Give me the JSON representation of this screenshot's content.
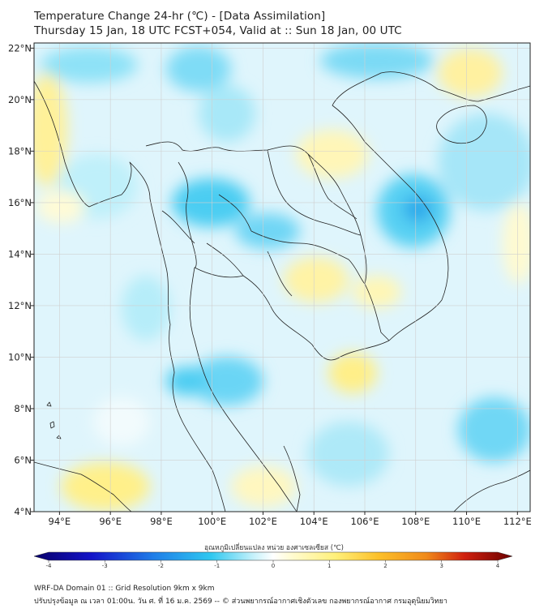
{
  "header": {
    "title_line1": "Temperature Change 24-hr (℃) - [Data Assimilation]",
    "title_line2": "Thursday 15 Jan, 18 UTC FCST+054, Valid at :: Sun 18 Jan, 00 UTC"
  },
  "map": {
    "lon_min": 93,
    "lon_max": 112.5,
    "lat_min": 4,
    "lat_max": 22.2,
    "lon_ticks": [
      "94°E",
      "96°E",
      "98°E",
      "100°E",
      "102°E",
      "104°E",
      "106°E",
      "108°E",
      "110°E",
      "112°E"
    ],
    "lat_ticks": [
      "4°N",
      "6°N",
      "8°N",
      "10°N",
      "12°N",
      "14°N",
      "16°N",
      "18°N",
      "20°N",
      "22°N"
    ]
  },
  "colorbar": {
    "title": "อุณหภูมิเปลี่ยนแปลง หน่วย องศาเซลเซียส (℃)",
    "tick_labels": [
      "-4",
      "-3",
      "-2",
      "-1",
      "0",
      "1",
      "2",
      "3",
      "4"
    ],
    "colors": {
      "cold_extreme": "#08006a",
      "cold_mid": "#1f5fe0",
      "cool": "#2fc8f0",
      "neutral": "#ffffff",
      "warm": "#fff07a",
      "hot_mid": "#f08a1a",
      "hot_extreme": "#6a0000"
    }
  },
  "footer": {
    "line1": "WRF-DA Domain 01 :: Grid Resolution 9km x 9km",
    "line2": "ปรับปรุงข้อมูล ณ เวลา 01:00น. วัน ศ. ที่ 16 ม.ค. 2569 -- © ส่วนพยากรณ์อากาศเชิงตัวเลข กองพยากรณ์อากาศ กรมอุตุนิยมวิทยา"
  }
}
